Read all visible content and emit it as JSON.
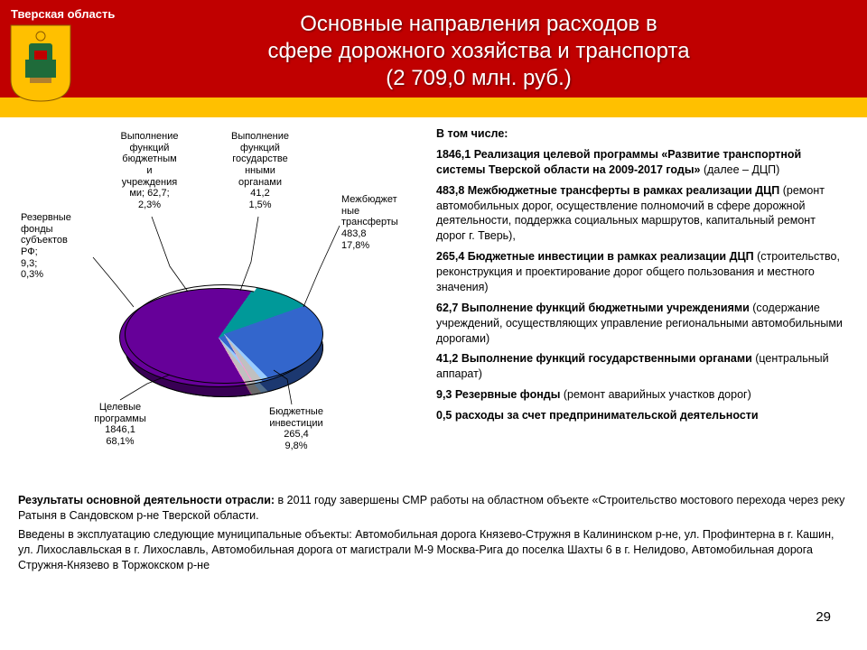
{
  "header": {
    "region": "Тверская область",
    "title_l1": "Основные направления расходов в",
    "title_l2": "сфере дорожного хозяйства и транспорта",
    "title_l3": "(2 709,0 млн. руб.)",
    "bg_color": "#c00000",
    "band_color": "#ffc000"
  },
  "emblem": {
    "shield_color": "#ffc000",
    "throne_color": "#1f6b3a",
    "crown_color": "#ffc000"
  },
  "pie": {
    "type": "pie-3d",
    "slices": [
      {
        "label": "Целевые программы",
        "value": 1846.1,
        "pct": "68,1%",
        "color": "#660099"
      },
      {
        "label": "Бюджетные инвестиции",
        "value": 265.4,
        "pct": "9,8%",
        "color": "#009999"
      },
      {
        "label": "Межбюджетные трансферты",
        "value": 483.8,
        "pct": "17,8%",
        "color": "#3366cc"
      },
      {
        "label": "Выполнение функций государственными органами",
        "value": 41.2,
        "pct": "1,5%",
        "color": "#99ccff"
      },
      {
        "label": "Выполнение функций бюджетными учреждениями; 62,7;",
        "value": 62.7,
        "pct": "2,3%",
        "color": "#c0c0c0"
      },
      {
        "label": "Резервные фонды субъектов РФ;",
        "value": 9.3,
        "pct": "0,3%",
        "color": "#ff99cc"
      }
    ],
    "explode_index": 0,
    "side_shade": "#4b006e",
    "border_color": "#000000"
  },
  "right": {
    "intro": "В том числе:",
    "items": [
      {
        "lead": "1846,1",
        "text": "Реализация целевой программы «Развитие транспортной системы Тверской области на 2009-2017 годы» (далее – ДЦП)"
      },
      {
        "lead": "483,8",
        "text": "Межбюджетные трансферты в рамках реализации ДЦП (ремонт автомобильных дорог, осуществление полномочий в сфере дорожной деятельности, поддержка социальных маршрутов, капитальный ремонт дорог г. Тверь),"
      },
      {
        "lead": "265,4",
        "text": "Бюджетные инвестиции в рамках реализации ДЦП (строительство, реконструкция и проектирование дорог общего пользования и местного значения)"
      },
      {
        "lead": "62,7",
        "text": "Выполнение функций бюджетными учреждениями (содержание учреждений, осуществляющих управление региональными автомобильными дорогами)"
      },
      {
        "lead": "41,2",
        "text": "Выполнение функций государственными органами (центральный аппарат)"
      },
      {
        "lead": "9,3",
        "text": "Резервные фонды (ремонт аварийных участков дорог)"
      },
      {
        "lead": "0,5",
        "text": "расходы за счет предпринимательской деятельности"
      }
    ]
  },
  "footer": {
    "p1_lead": "Результаты основной деятельности отрасли:",
    "p1": " в 2011 году завершены СМР работы на областном объекте «Строительство мостового перехода через реку Ратыня в Сандовском р-не Тверской области.",
    "p2": "Введены в эксплуатацию следующие муниципальные объекты: Автомобильная дорога Князево-Стружня в Калининском р-не, ул. Профинтерна в г. Кашин, ул. Лихославльская в г. Лихославль, Автомобильная дорога от магистрали М-9 Москва-Рига до поселка Шахты 6 в г. Нелидово, Автомобильная дорога Стружня-Князево в Торжокском р-не"
  },
  "page_number": "29",
  "labels": {
    "s0": "Целевые\nпрограммы\n1846,1\n68,1%",
    "s1": "Бюджетные\nинвестиции\n265,4\n9,8%",
    "s2": "Межбюджет\nные\nтрансферты\n483,8\n17,8%",
    "s3": "Выполнение\nфункций\nгосударстве\nнными\nорганами\n41,2\n1,5%",
    "s4": "Выполнение\nфункций\nбюджетным\nи\nучреждения\nми; 62,7;\n2,3%",
    "s5": "Резервные\nфонды\nсубъектов\nРФ;\n9,3;\n0,3%"
  }
}
